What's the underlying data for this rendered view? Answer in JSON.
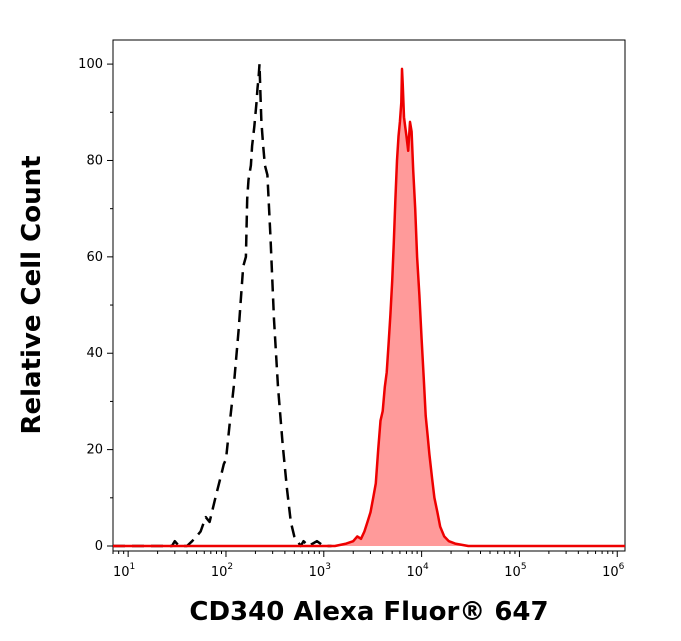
{
  "chart_data": {
    "type": "line",
    "title": "",
    "xlabel": "CD340 Alexa Fluor® 647",
    "ylabel": "Relative Cell Count",
    "xscale": "log",
    "xlim": [
      7,
      1200000
    ],
    "ylim": [
      0,
      105
    ],
    "y_ticks": [
      "0",
      "20",
      "40",
      "60",
      "80",
      "100"
    ],
    "x_ticks": [
      {
        "base": "10",
        "exp": "1"
      },
      {
        "base": "10",
        "exp": "2"
      },
      {
        "base": "10",
        "exp": "3"
      },
      {
        "base": "10",
        "exp": "4"
      },
      {
        "base": "10",
        "exp": "5"
      },
      {
        "base": "10",
        "exp": "6"
      }
    ],
    "grid": false,
    "legend": "none",
    "series": [
      {
        "style": "dashed",
        "color": "#000000",
        "fill": "none",
        "points": [
          [
            7,
            0
          ],
          [
            20,
            0
          ],
          [
            28,
            0
          ],
          [
            30,
            1
          ],
          [
            33,
            0
          ],
          [
            40,
            0
          ],
          [
            45,
            1
          ],
          [
            50,
            2
          ],
          [
            55,
            3
          ],
          [
            62,
            6
          ],
          [
            68,
            5
          ],
          [
            78,
            10
          ],
          [
            90,
            15
          ],
          [
            95,
            17
          ],
          [
            100,
            18
          ],
          [
            110,
            26
          ],
          [
            120,
            33
          ],
          [
            135,
            45
          ],
          [
            150,
            58
          ],
          [
            160,
            60
          ],
          [
            165,
            72
          ],
          [
            170,
            76
          ],
          [
            180,
            79
          ],
          [
            185,
            83
          ],
          [
            195,
            87
          ],
          [
            205,
            92
          ],
          [
            210,
            95
          ],
          [
            215,
            97
          ],
          [
            220,
            100
          ],
          [
            225,
            94
          ],
          [
            230,
            88
          ],
          [
            240,
            83
          ],
          [
            250,
            79
          ],
          [
            265,
            77
          ],
          [
            285,
            64
          ],
          [
            310,
            47
          ],
          [
            340,
            33
          ],
          [
            380,
            21
          ],
          [
            420,
            12
          ],
          [
            460,
            5
          ],
          [
            500,
            2
          ],
          [
            540,
            1
          ],
          [
            580,
            0
          ],
          [
            620,
            1
          ],
          [
            700,
            0
          ],
          [
            850,
            1
          ],
          [
            1000,
            0
          ],
          [
            1200,
            0
          ]
        ]
      },
      {
        "style": "solid",
        "color": "#ee0000",
        "fill": "#ff9a9a",
        "points": [
          [
            7,
            0
          ],
          [
            500,
            0
          ],
          [
            1000,
            0
          ],
          [
            1300,
            0
          ],
          [
            1700,
            0.5
          ],
          [
            2000,
            1
          ],
          [
            2200,
            2
          ],
          [
            2400,
            1.5
          ],
          [
            2600,
            3
          ],
          [
            2800,
            5
          ],
          [
            3000,
            7
          ],
          [
            3200,
            10
          ],
          [
            3400,
            13
          ],
          [
            3600,
            20
          ],
          [
            3800,
            26
          ],
          [
            4000,
            28
          ],
          [
            4200,
            33
          ],
          [
            4400,
            36
          ],
          [
            4600,
            42
          ],
          [
            4800,
            48
          ],
          [
            5000,
            55
          ],
          [
            5200,
            63
          ],
          [
            5400,
            72
          ],
          [
            5600,
            80
          ],
          [
            5800,
            85
          ],
          [
            6000,
            88
          ],
          [
            6200,
            92
          ],
          [
            6300,
            99
          ],
          [
            6400,
            96
          ],
          [
            6600,
            89
          ],
          [
            6800,
            87
          ],
          [
            7000,
            85
          ],
          [
            7300,
            82
          ],
          [
            7600,
            88
          ],
          [
            7900,
            86
          ],
          [
            8200,
            78
          ],
          [
            8600,
            70
          ],
          [
            9000,
            60
          ],
          [
            9500,
            52
          ],
          [
            10000,
            43
          ],
          [
            10500,
            35
          ],
          [
            11000,
            27
          ],
          [
            11500,
            23
          ],
          [
            12000,
            19
          ],
          [
            12800,
            14
          ],
          [
            13500,
            10
          ],
          [
            14500,
            7
          ],
          [
            15500,
            4
          ],
          [
            17000,
            2
          ],
          [
            19000,
            1
          ],
          [
            22000,
            0.5
          ],
          [
            30000,
            0
          ],
          [
            100000,
            0
          ],
          [
            1000000,
            0
          ],
          [
            1200000,
            0
          ]
        ]
      }
    ]
  }
}
